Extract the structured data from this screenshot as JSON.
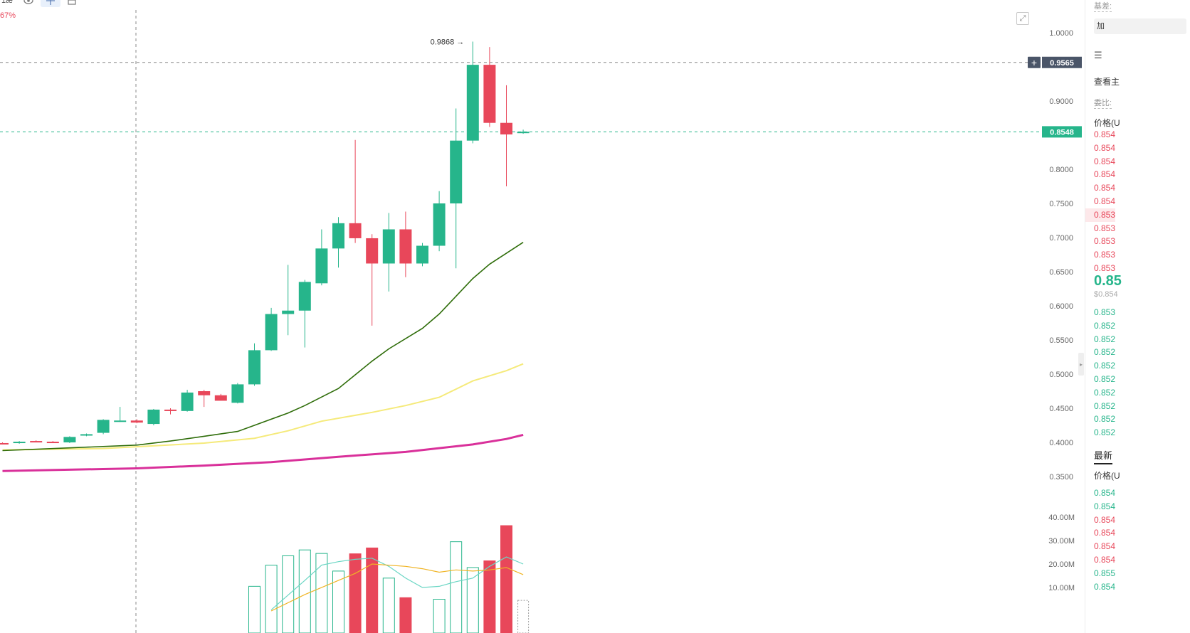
{
  "toolbar": {
    "interval_label": "1æ",
    "eye_icon": "eye-icon",
    "draw_icon": "crosshair-icon",
    "layout_icon": "layout-icon",
    "change_pct": "67%"
  },
  "colors": {
    "up": "#26b58b",
    "down": "#e8475a",
    "ma_green": "#2f6d0a",
    "ma_yellow": "#f5ea7a",
    "ma_pink": "#d9309a",
    "vol_ma1": "#6ad6c4",
    "vol_ma2": "#f0b424",
    "grey_label": "#6b7280"
  },
  "chart_data": {
    "type": "candlestick",
    "price_axis": {
      "ticks": [
        "1.0000",
        "0.9000",
        "0.8000",
        "0.7500",
        "0.7000",
        "0.6500",
        "0.6000",
        "0.5500",
        "0.5000",
        "0.4500",
        "0.4000",
        "0.3500"
      ],
      "range": [
        0.33,
        1.04
      ]
    },
    "volume_axis": {
      "ticks": [
        "40.00M",
        "30.00M",
        "20.00M",
        "10.00M"
      ],
      "range": [
        0,
        45
      ]
    },
    "high_annotation": "0.9868",
    "crosshair_price": "0.9565",
    "last_price": "0.8548",
    "candles": [
      {
        "o": 0.399,
        "h": 0.4,
        "l": 0.397,
        "c": 0.398
      },
      {
        "o": 0.399,
        "h": 0.402,
        "l": 0.398,
        "c": 0.401
      },
      {
        "o": 0.402,
        "h": 0.403,
        "l": 0.4,
        "c": 0.401
      },
      {
        "o": 0.401,
        "h": 0.402,
        "l": 0.399,
        "c": 0.399
      },
      {
        "o": 0.4,
        "h": 0.409,
        "l": 0.399,
        "c": 0.408
      },
      {
        "o": 0.41,
        "h": 0.413,
        "l": 0.409,
        "c": 0.412
      },
      {
        "o": 0.414,
        "h": 0.434,
        "l": 0.412,
        "c": 0.433
      },
      {
        "o": 0.431,
        "h": 0.452,
        "l": 0.43,
        "c": 0.432
      },
      {
        "o": 0.432,
        "h": 0.434,
        "l": 0.428,
        "c": 0.429
      },
      {
        "o": 0.427,
        "h": 0.449,
        "l": 0.425,
        "c": 0.448
      },
      {
        "o": 0.448,
        "h": 0.45,
        "l": 0.441,
        "c": 0.446
      },
      {
        "o": 0.446,
        "h": 0.477,
        "l": 0.445,
        "c": 0.473
      },
      {
        "o": 0.475,
        "h": 0.477,
        "l": 0.452,
        "c": 0.469
      },
      {
        "o": 0.469,
        "h": 0.471,
        "l": 0.461,
        "c": 0.461
      },
      {
        "o": 0.458,
        "h": 0.487,
        "l": 0.457,
        "c": 0.485
      },
      {
        "o": 0.485,
        "h": 0.545,
        "l": 0.483,
        "c": 0.535
      },
      {
        "o": 0.535,
        "h": 0.597,
        "l": 0.534,
        "c": 0.588
      },
      {
        "o": 0.588,
        "h": 0.66,
        "l": 0.557,
        "c": 0.593
      },
      {
        "o": 0.593,
        "h": 0.638,
        "l": 0.539,
        "c": 0.635
      },
      {
        "o": 0.633,
        "h": 0.712,
        "l": 0.63,
        "c": 0.684
      },
      {
        "o": 0.684,
        "h": 0.73,
        "l": 0.656,
        "c": 0.721
      },
      {
        "o": 0.721,
        "h": 0.843,
        "l": 0.692,
        "c": 0.699
      },
      {
        "o": 0.699,
        "h": 0.705,
        "l": 0.571,
        "c": 0.662
      },
      {
        "o": 0.662,
        "h": 0.736,
        "l": 0.621,
        "c": 0.712
      },
      {
        "o": 0.712,
        "h": 0.738,
        "l": 0.642,
        "c": 0.662
      },
      {
        "o": 0.662,
        "h": 0.692,
        "l": 0.658,
        "c": 0.688
      },
      {
        "o": 0.688,
        "h": 0.768,
        "l": 0.68,
        "c": 0.75
      },
      {
        "o": 0.75,
        "h": 0.889,
        "l": 0.655,
        "c": 0.842
      },
      {
        "o": 0.842,
        "h": 0.987,
        "l": 0.838,
        "c": 0.953
      },
      {
        "o": 0.953,
        "h": 0.979,
        "l": 0.862,
        "c": 0.868
      },
      {
        "o": 0.868,
        "h": 0.923,
        "l": 0.775,
        "c": 0.851
      },
      {
        "o": 0.853,
        "h": 0.858,
        "l": 0.852,
        "c": 0.855
      }
    ],
    "ma_green": [
      [
        0,
        0.388
      ],
      [
        4,
        0.392
      ],
      [
        8,
        0.396
      ],
      [
        10,
        0.402
      ],
      [
        12,
        0.409
      ],
      [
        14,
        0.416
      ],
      [
        15,
        0.425
      ],
      [
        17,
        0.443
      ],
      [
        18,
        0.454
      ],
      [
        20,
        0.479
      ],
      [
        22,
        0.519
      ],
      [
        23,
        0.537
      ],
      [
        25,
        0.567
      ],
      [
        26,
        0.588
      ],
      [
        27,
        0.614
      ],
      [
        28,
        0.64
      ],
      [
        29,
        0.661
      ],
      [
        30,
        0.677
      ],
      [
        31,
        0.693
      ]
    ],
    "ma_yellow": [
      [
        0,
        0.389
      ],
      [
        6,
        0.391
      ],
      [
        12,
        0.399
      ],
      [
        15,
        0.406
      ],
      [
        17,
        0.417
      ],
      [
        19,
        0.431
      ],
      [
        22,
        0.444
      ],
      [
        24,
        0.454
      ],
      [
        26,
        0.466
      ],
      [
        27,
        0.478
      ],
      [
        28,
        0.49
      ],
      [
        30,
        0.505
      ],
      [
        31,
        0.515
      ]
    ],
    "ma_pink": [
      [
        0,
        0.358
      ],
      [
        8,
        0.362
      ],
      [
        12,
        0.366
      ],
      [
        16,
        0.371
      ],
      [
        20,
        0.379
      ],
      [
        24,
        0.386
      ],
      [
        28,
        0.397
      ],
      [
        30,
        0.405
      ],
      [
        31,
        0.411
      ]
    ],
    "volume": [
      {
        "i": 15,
        "v": 10.5,
        "up": true
      },
      {
        "i": 16,
        "v": 19.5,
        "up": true
      },
      {
        "i": 17,
        "v": 23.5,
        "up": true
      },
      {
        "i": 18,
        "v": 26.0,
        "up": true
      },
      {
        "i": 19,
        "v": 24.5,
        "up": true
      },
      {
        "i": 20,
        "v": 17.0,
        "up": true
      },
      {
        "i": 21,
        "v": 24.5,
        "up": false
      },
      {
        "i": 22,
        "v": 27.0,
        "up": false
      },
      {
        "i": 23,
        "v": 14.0,
        "up": true
      },
      {
        "i": 24,
        "v": 5.8,
        "up": false
      },
      {
        "i": 26,
        "v": 5.0,
        "up": true
      },
      {
        "i": 27,
        "v": 29.5,
        "up": true
      },
      {
        "i": 28,
        "v": 18.5,
        "up": true
      },
      {
        "i": 29,
        "v": 21.5,
        "up": false
      },
      {
        "i": 30,
        "v": 36.5,
        "up": false
      },
      {
        "i": 31,
        "v": 4.5,
        "up": true,
        "pending": true
      }
    ],
    "vol_ma1": [
      [
        16,
        0.5
      ],
      [
        18,
        13
      ],
      [
        19,
        19.5
      ],
      [
        20,
        21
      ],
      [
        21,
        22
      ],
      [
        22,
        22.5
      ],
      [
        23,
        19
      ],
      [
        24,
        14
      ],
      [
        25,
        10
      ],
      [
        26,
        10.5
      ],
      [
        27,
        12.5
      ],
      [
        28,
        14
      ],
      [
        29,
        19
      ],
      [
        30,
        23
      ],
      [
        31,
        20
      ]
    ],
    "vol_ma2": [
      [
        16,
        0
      ],
      [
        18,
        7
      ],
      [
        20,
        13
      ],
      [
        21,
        16
      ],
      [
        22,
        20
      ],
      [
        24,
        19
      ],
      [
        25,
        18
      ],
      [
        26,
        16.5
      ],
      [
        27,
        17.5
      ],
      [
        28,
        17
      ],
      [
        29,
        17.5
      ],
      [
        30,
        18.5
      ],
      [
        31,
        15.5
      ]
    ]
  },
  "side_panel": {
    "base_label": "基差:",
    "add_button": "加",
    "list_icon": "list-icon",
    "view_label": "查看主",
    "ratio_label": "委比:",
    "price_header": "价格(U",
    "asks": [
      "0.854",
      "0.854",
      "0.854",
      "0.854",
      "0.854",
      "0.854",
      "0.853",
      "0.853",
      "0.853",
      "0.853",
      "0.853"
    ],
    "last_price": "0.85",
    "usd_price": "$0.854",
    "bids": [
      "0.853",
      "0.852",
      "0.852",
      "0.852",
      "0.852",
      "0.852",
      "0.852",
      "0.852",
      "0.852",
      "0.852"
    ],
    "latest_tab": "最新",
    "price_header2": "价格(U",
    "trades": [
      {
        "p": "0.854",
        "up": true
      },
      {
        "p": "0.854",
        "up": true
      },
      {
        "p": "0.854",
        "up": false
      },
      {
        "p": "0.854",
        "up": false
      },
      {
        "p": "0.854",
        "up": false
      },
      {
        "p": "0.854",
        "up": false
      },
      {
        "p": "0.855",
        "up": true
      },
      {
        "p": "0.854",
        "up": true
      }
    ]
  }
}
